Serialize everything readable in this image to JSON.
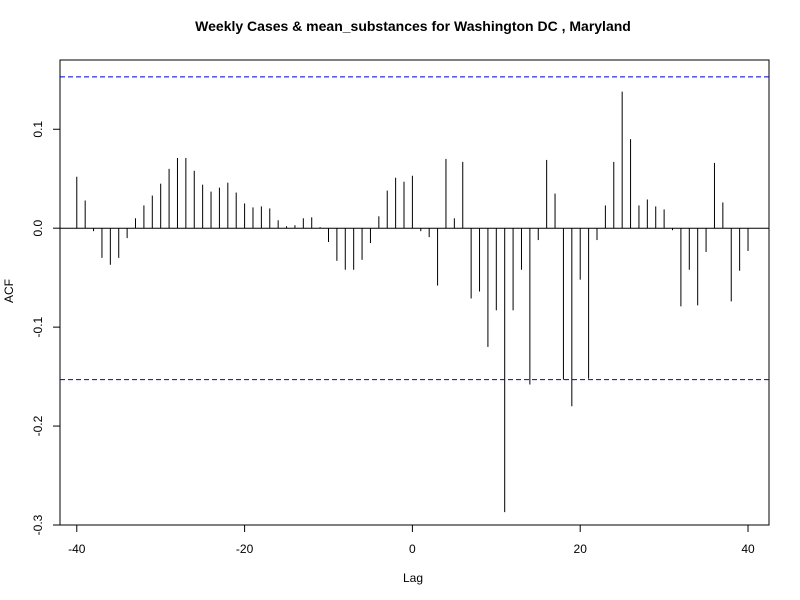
{
  "chart_data": {
    "type": "bar",
    "title": "Weekly Cases & mean_substances for Washington DC , Maryland",
    "xlabel": "Lag",
    "ylabel": "ACF",
    "xlim": [
      -42,
      42.5
    ],
    "ylim": [
      -0.3,
      0.17
    ],
    "x_ticks": [
      -40,
      -20,
      0,
      20,
      40
    ],
    "x_tick_labels": [
      "-40",
      "-20",
      "0",
      "20",
      "40"
    ],
    "y_ticks": [
      -0.3,
      -0.2,
      -0.1,
      0.0,
      0.1
    ],
    "y_tick_labels": [
      "-0.3",
      "-0.2",
      "-0.1",
      "0.0",
      "0.1"
    ],
    "confidence_limit": 0.153,
    "colors": {
      "bars": "#000000",
      "confidence": "#0000cc",
      "zero_line": "#000000"
    },
    "lags": [
      -40,
      -39,
      -38,
      -37,
      -36,
      -35,
      -34,
      -33,
      -32,
      -31,
      -30,
      -29,
      -28,
      -27,
      -26,
      -25,
      -24,
      -23,
      -22,
      -21,
      -20,
      -19,
      -18,
      -17,
      -16,
      -15,
      -14,
      -13,
      -12,
      -11,
      -10,
      -9,
      -8,
      -7,
      -6,
      -5,
      -4,
      -3,
      -2,
      -1,
      0,
      1,
      2,
      3,
      4,
      5,
      6,
      7,
      8,
      9,
      10,
      11,
      12,
      13,
      14,
      15,
      16,
      17,
      18,
      19,
      20,
      21,
      22,
      23,
      24,
      25,
      26,
      27,
      28,
      29,
      30,
      31,
      32,
      33,
      34,
      35,
      36,
      37,
      38,
      39,
      40
    ],
    "values": [
      0.052,
      0.028,
      -0.003,
      -0.03,
      -0.037,
      -0.03,
      -0.01,
      0.01,
      0.023,
      0.033,
      0.045,
      0.06,
      0.071,
      0.071,
      0.058,
      0.044,
      0.037,
      0.041,
      0.046,
      0.036,
      0.025,
      0.021,
      0.022,
      0.02,
      0.008,
      0.002,
      0.003,
      0.01,
      0.011,
      0.001,
      -0.014,
      -0.033,
      -0.042,
      -0.042,
      -0.032,
      -0.015,
      0.012,
      0.038,
      0.051,
      0.047,
      0.053,
      -0.003,
      -0.009,
      -0.058,
      0.07,
      0.01,
      0.067,
      -0.071,
      -0.064,
      -0.12,
      -0.083,
      -0.287,
      -0.083,
      -0.042,
      -0.158,
      -0.012,
      0.069,
      0.035,
      -0.153,
      -0.18,
      -0.052,
      -0.152,
      -0.012,
      0.023,
      0.067,
      0.138,
      0.09,
      0.023,
      0.029,
      0.022,
      0.019,
      -0.002,
      -0.079,
      -0.042,
      -0.078,
      -0.024,
      0.066,
      0.026,
      -0.074,
      -0.043,
      -0.023
    ]
  }
}
